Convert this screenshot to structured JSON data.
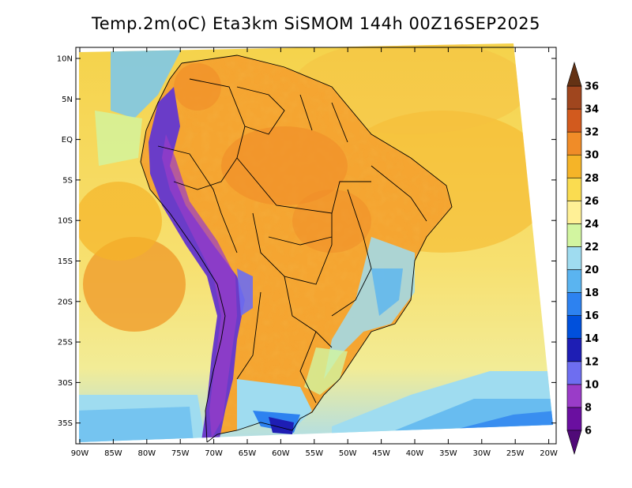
{
  "title": "Temp.2m(oC) Eta3km SiSMOM 144h 00Z16SEP2025",
  "lat_labels": [
    "10N",
    "5N",
    "EQ",
    "5S",
    "10S",
    "15S",
    "20S",
    "25S",
    "30S",
    "35S"
  ],
  "lon_labels": [
    "90W",
    "85W",
    "80W",
    "75W",
    "70W",
    "65W",
    "60W",
    "55W",
    "50W",
    "45W",
    "40W",
    "35W",
    "30W",
    "25W",
    "20W"
  ],
  "colorbar": {
    "levels": [
      6,
      8,
      10,
      12,
      14,
      16,
      18,
      20,
      22,
      24,
      26,
      28,
      30,
      32,
      34,
      36
    ],
    "labels": [
      "6",
      "8",
      "10",
      "12",
      "14",
      "16",
      "18",
      "20",
      "22",
      "24",
      "26",
      "28",
      "30",
      "32",
      "34",
      "36"
    ],
    "colors": [
      "#6a0fa0",
      "#9a3cc8",
      "#6e6ef0",
      "#1e1eb4",
      "#0050dc",
      "#2d82f0",
      "#5ab4f0",
      "#9fdcf0",
      "#d2f5a0",
      "#fff096",
      "#fadc50",
      "#f5b428",
      "#f08c28",
      "#d25a1e",
      "#a0461e"
    ],
    "under_color": "#500a78",
    "over_color": "#643214"
  },
  "colors": {
    "ocean_north": "#f5d24a",
    "ocean_south": "#f0e68c",
    "land_warm": "#f5a531",
    "andes": "#6a3cc8"
  }
}
